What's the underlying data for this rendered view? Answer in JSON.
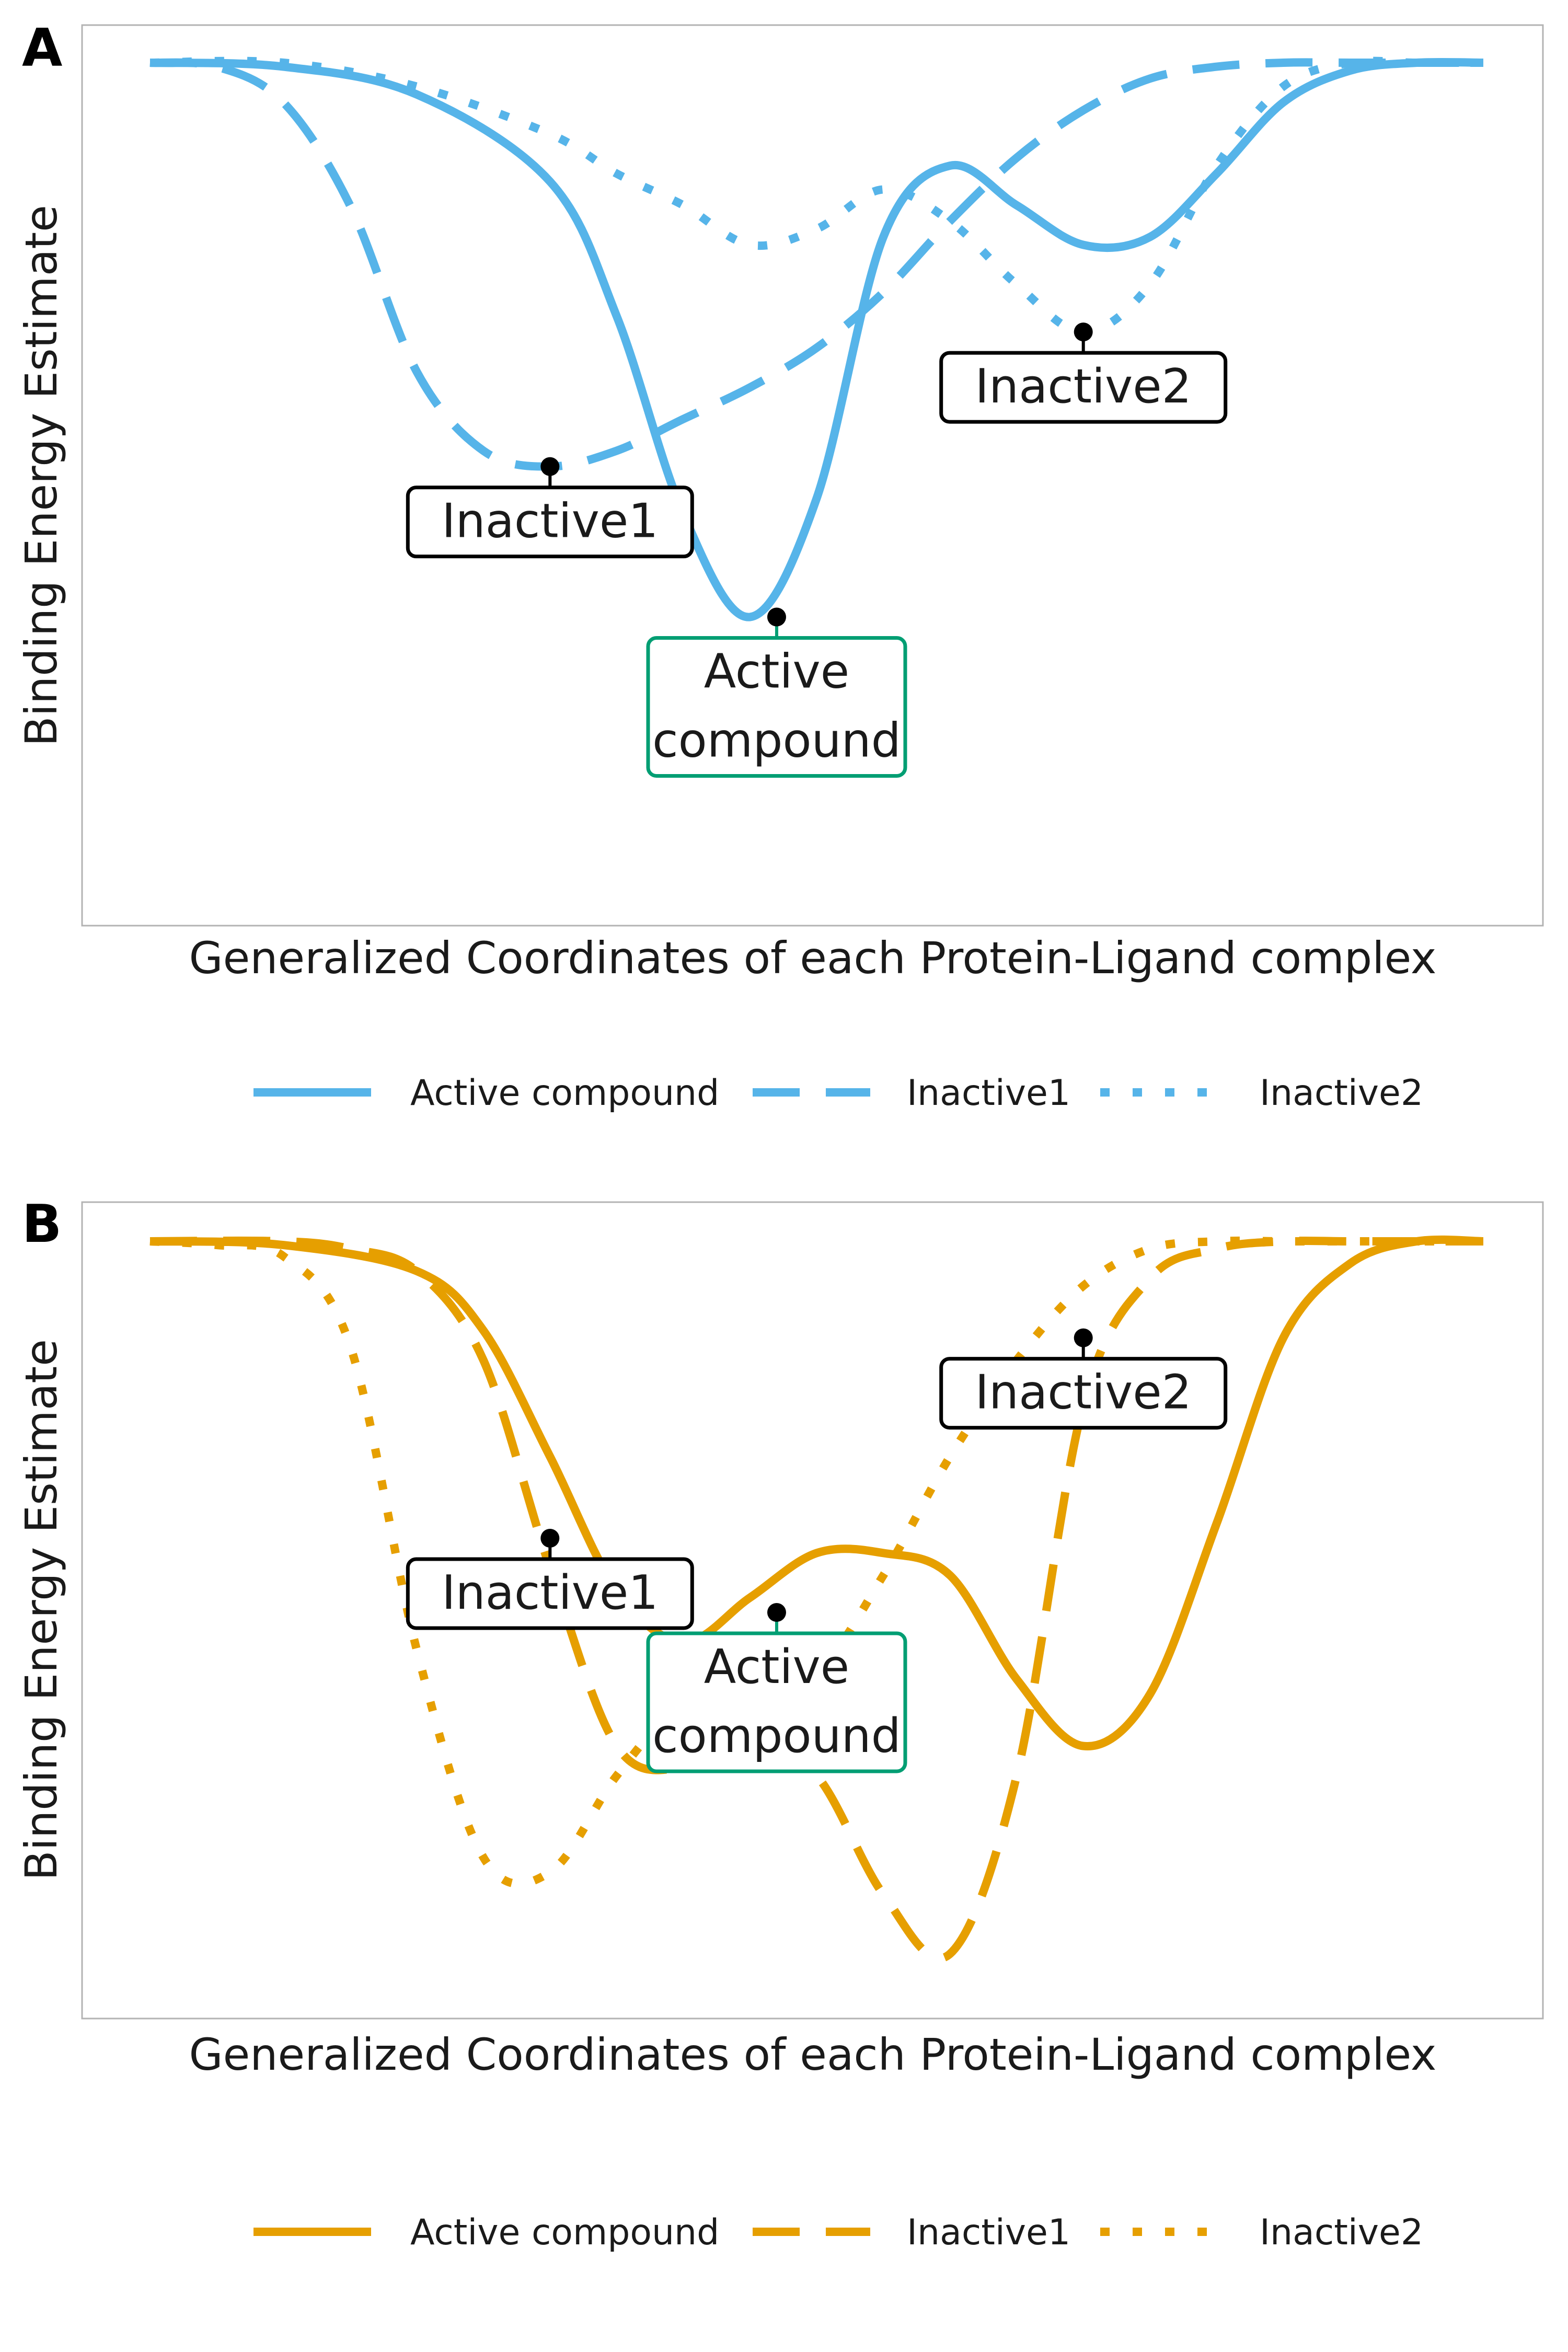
{
  "chart_data": [
    {
      "panel_label": "A",
      "type": "line",
      "xlabel": "Generalized Coordinates of each Protein-Ligand complex",
      "ylabel": "Binding Energy Estimate",
      "xlim": [
        0,
        1
      ],
      "ylim": [
        0,
        1
      ],
      "grid": false,
      "legend_position": "bottom",
      "color": "#56B4E9",
      "series": [
        {
          "name": "Active compound",
          "linestyle": "solid",
          "x": [
            0,
            0.1,
            0.2,
            0.3,
            0.35,
            0.4,
            0.45,
            0.5,
            0.55,
            0.6,
            0.65,
            0.7,
            0.75,
            0.8,
            0.85,
            0.9,
            0.95,
            1.0
          ],
          "y": [
            1.0,
            0.995,
            0.96,
            0.85,
            0.68,
            0.43,
            0.3,
            0.45,
            0.78,
            0.87,
            0.82,
            0.77,
            0.78,
            0.86,
            0.95,
            0.99,
            1.0,
            1.0
          ]
        },
        {
          "name": "Inactive1",
          "linestyle": "dashed",
          "x": [
            0,
            0.05,
            0.1,
            0.15,
            0.2,
            0.25,
            0.3,
            0.35,
            0.4,
            0.45,
            0.5,
            0.55,
            0.6,
            0.65,
            0.7,
            0.75,
            0.8,
            0.85,
            0.9,
            0.95,
            1.0
          ],
          "y": [
            1.0,
            0.995,
            0.95,
            0.82,
            0.61,
            0.51,
            0.49,
            0.51,
            0.55,
            0.59,
            0.64,
            0.71,
            0.8,
            0.88,
            0.94,
            0.98,
            0.995,
            1.0,
            1.0,
            1.0,
            1.0
          ]
        },
        {
          "name": "Inactive2",
          "linestyle": "dotted",
          "x": [
            0,
            0.1,
            0.2,
            0.3,
            0.35,
            0.4,
            0.45,
            0.5,
            0.55,
            0.6,
            0.65,
            0.7,
            0.75,
            0.8,
            0.85,
            0.9,
            0.95,
            1.0
          ],
          "y": [
            1.0,
            1.0,
            0.97,
            0.91,
            0.86,
            0.82,
            0.77,
            0.79,
            0.84,
            0.8,
            0.72,
            0.66,
            0.72,
            0.87,
            0.97,
            1.0,
            1.0,
            1.0
          ]
        }
      ],
      "annotations": [
        {
          "text": "Inactive1",
          "x": 0.3,
          "y": 0.49,
          "style": "inactive"
        },
        {
          "text": "Inactive2",
          "x": 0.7,
          "y": 0.66,
          "style": "inactive"
        },
        {
          "text": "Active\ncompound",
          "x": 0.47,
          "y": 0.3,
          "style": "active"
        }
      ]
    },
    {
      "panel_label": "B",
      "type": "line",
      "xlabel": "Generalized Coordinates of each Protein-Ligand complex",
      "ylabel": "Binding Energy Estimate",
      "xlim": [
        0,
        1
      ],
      "ylim": [
        0,
        1
      ],
      "grid": false,
      "legend_position": "bottom",
      "color": "#E69F00",
      "series": [
        {
          "name": "Active compound",
          "linestyle": "solid",
          "x": [
            0,
            0.1,
            0.2,
            0.25,
            0.3,
            0.35,
            0.4,
            0.45,
            0.5,
            0.55,
            0.6,
            0.65,
            0.7,
            0.75,
            0.8,
            0.85,
            0.9,
            0.95,
            1.0
          ],
          "y": [
            1.0,
            0.995,
            0.96,
            0.88,
            0.71,
            0.53,
            0.46,
            0.52,
            0.58,
            0.58,
            0.55,
            0.41,
            0.32,
            0.39,
            0.62,
            0.87,
            0.97,
            1.0,
            1.0
          ]
        },
        {
          "name": "Inactive1",
          "linestyle": "dashed",
          "x": [
            0,
            0.1,
            0.15,
            0.2,
            0.25,
            0.3,
            0.35,
            0.4,
            0.45,
            0.5,
            0.55,
            0.6,
            0.65,
            0.7,
            0.75,
            0.8,
            0.85,
            0.9,
            0.95,
            1.0
          ],
          "y": [
            1.0,
            1.0,
            0.99,
            0.96,
            0.84,
            0.56,
            0.32,
            0.29,
            0.32,
            0.28,
            0.12,
            0.04,
            0.28,
            0.78,
            0.95,
            0.99,
            1.0,
            1.0,
            1.0,
            1.0
          ]
        },
        {
          "name": "Inactive2",
          "linestyle": "dotted",
          "x": [
            0,
            0.05,
            0.1,
            0.15,
            0.2,
            0.25,
            0.3,
            0.35,
            0.4,
            0.45,
            0.5,
            0.55,
            0.6,
            0.65,
            0.7,
            0.75,
            0.8,
            0.85,
            0.9,
            0.95,
            1.0
          ],
          "y": [
            1.0,
            0.995,
            0.98,
            0.86,
            0.45,
            0.17,
            0.15,
            0.28,
            0.38,
            0.41,
            0.42,
            0.55,
            0.71,
            0.84,
            0.94,
            0.99,
            1.0,
            1.0,
            1.0,
            1.0,
            1.0
          ]
        }
      ],
      "annotations": [
        {
          "text": "Inactive1",
          "x": 0.3,
          "y": 0.6,
          "style": "inactive"
        },
        {
          "text": "Inactive2",
          "x": 0.7,
          "y": 0.87,
          "style": "inactive"
        },
        {
          "text": "Active\ncompound",
          "x": 0.47,
          "y": 0.5,
          "style": "active"
        }
      ]
    }
  ],
  "legend": {
    "entries": [
      "Active compound",
      "Inactive1",
      "Inactive2"
    ]
  },
  "colors": {
    "panel_a": "#56B4E9",
    "panel_b": "#E69F00",
    "active_box": "#009E73",
    "inactive_box": "#000000",
    "frame": "#b3b3b3"
  }
}
